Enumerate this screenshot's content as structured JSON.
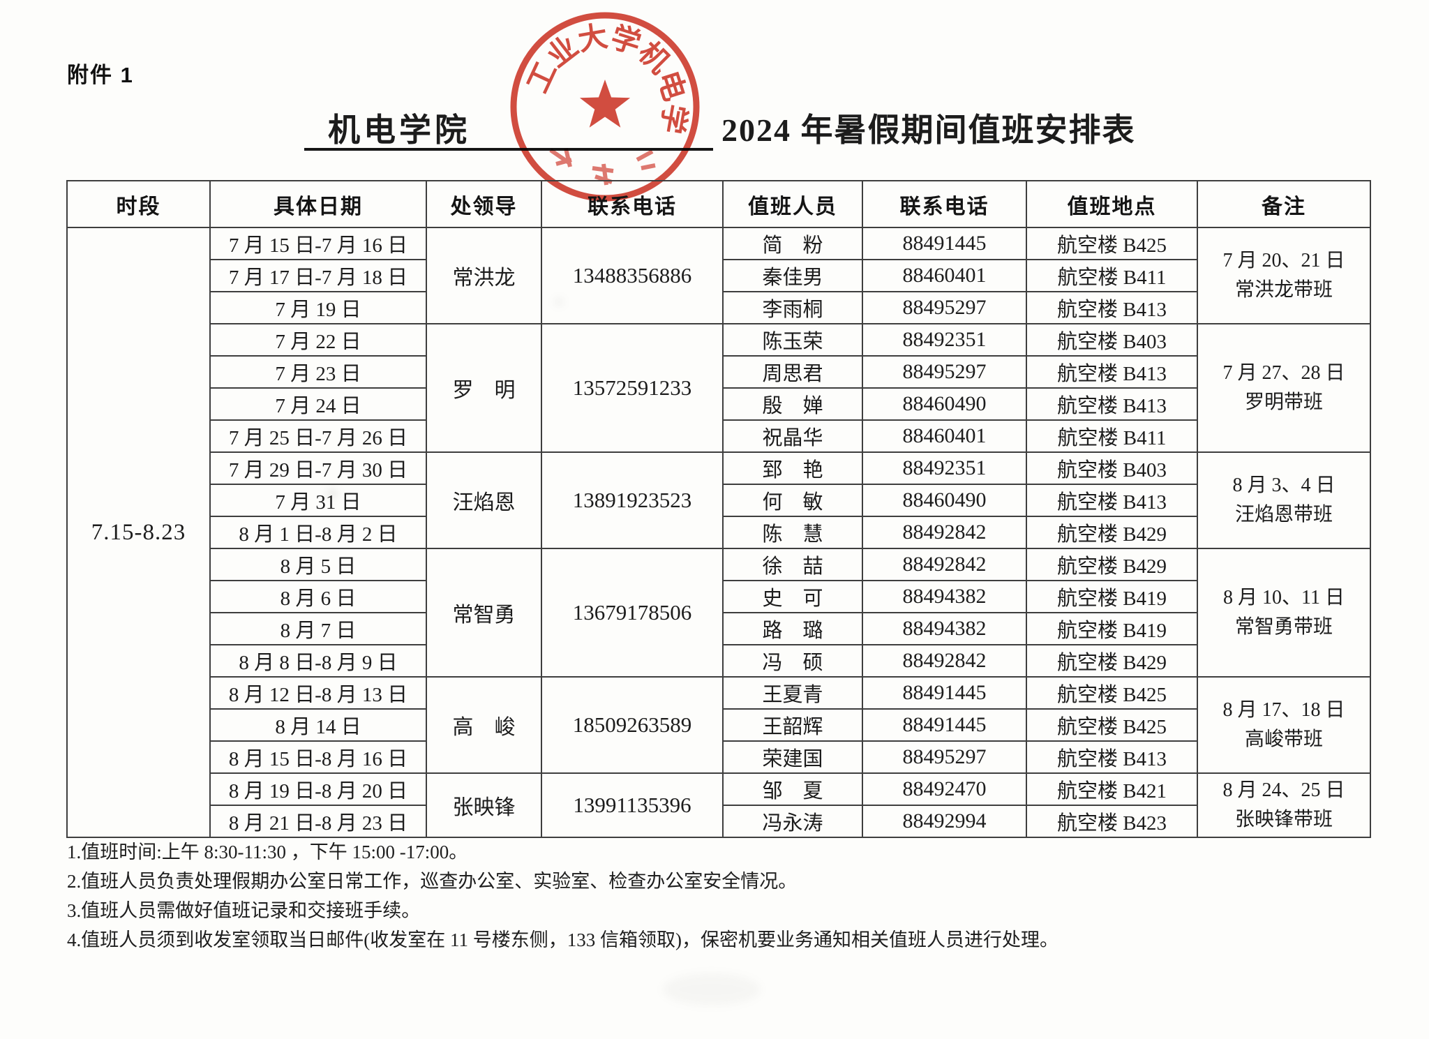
{
  "page": {
    "attachment_label": "附件 1",
    "title_blank": "机电学院",
    "title_rest": "2024 年暑假期间值班安排表"
  },
  "stamp": {
    "ring_text": "工业大学机电学",
    "color": "#cf392c"
  },
  "table": {
    "headers": [
      "时段",
      "具体日期",
      "处领导",
      "联系电话",
      "值班人员",
      "联系电话",
      "值班地点",
      "备注"
    ],
    "period": "7.15-8.23",
    "groups": [
      {
        "leader": "常洪龙",
        "leader_phone": "13488356886",
        "remark_line1": "7 月 20、21 日",
        "remark_line2": "常洪龙带班",
        "rows": [
          {
            "date": "7 月 15 日-7 月 16 日",
            "person": "简　粉",
            "phone": "88491445",
            "location": "航空楼 B425"
          },
          {
            "date": "7 月 17 日-7 月 18 日",
            "person": "秦佳男",
            "phone": "88460401",
            "location": "航空楼 B411"
          },
          {
            "date": "7 月 19 日",
            "person": "李雨桐",
            "phone": "88495297",
            "location": "航空楼 B413"
          }
        ]
      },
      {
        "leader": "罗　明",
        "leader_phone": "13572591233",
        "remark_line1": "7 月 27、28 日",
        "remark_line2": "罗明带班",
        "rows": [
          {
            "date": "7 月 22 日",
            "person": "陈玉荣",
            "phone": "88492351",
            "location": "航空楼 B403"
          },
          {
            "date": "7 月 23 日",
            "person": "周思君",
            "phone": "88495297",
            "location": "航空楼 B413"
          },
          {
            "date": "7 月 24 日",
            "person": "殷　婵",
            "phone": "88460490",
            "location": "航空楼 B413"
          },
          {
            "date": "7 月 25 日-7 月 26 日",
            "person": "祝晶华",
            "phone": "88460401",
            "location": "航空楼 B411"
          }
        ]
      },
      {
        "leader": "汪焰恩",
        "leader_phone": "13891923523",
        "remark_line1": "8 月 3、4 日",
        "remark_line2": "汪焰恩带班",
        "rows": [
          {
            "date": "7 月 29 日-7 月 30 日",
            "person": "郅　艳",
            "phone": "88492351",
            "location": "航空楼 B403"
          },
          {
            "date": "7 月 31 日",
            "person": "何　敏",
            "phone": "88460490",
            "location": "航空楼 B413"
          },
          {
            "date": "8 月 1 日-8 月 2 日",
            "person": "陈　慧",
            "phone": "88492842",
            "location": "航空楼 B429"
          }
        ]
      },
      {
        "leader": "常智勇",
        "leader_phone": "13679178506",
        "remark_line1": "8 月 10、11 日",
        "remark_line2": "常智勇带班",
        "rows": [
          {
            "date": "8 月 5 日",
            "person": "徐　喆",
            "phone": "88492842",
            "location": "航空楼 B429"
          },
          {
            "date": "8 月 6 日",
            "person": "史　可",
            "phone": "88494382",
            "location": "航空楼 B419"
          },
          {
            "date": "8 月 7 日",
            "person": "路　璐",
            "phone": "88494382",
            "location": "航空楼 B419"
          },
          {
            "date": "8 月 8 日-8 月 9 日",
            "person": "冯　硕",
            "phone": "88492842",
            "location": "航空楼 B429"
          }
        ]
      },
      {
        "leader": "高　峻",
        "leader_phone": "18509263589",
        "remark_line1": "8 月 17、18 日",
        "remark_line2": "高峻带班",
        "rows": [
          {
            "date": "8 月 12 日-8 月 13 日",
            "person": "王夏青",
            "phone": "88491445",
            "location": "航空楼 B425"
          },
          {
            "date": "8 月 14 日",
            "person": "王韶辉",
            "phone": "88491445",
            "location": "航空楼 B425"
          },
          {
            "date": "8 月 15 日-8 月 16 日",
            "person": "荣建国",
            "phone": "88495297",
            "location": "航空楼 B413"
          }
        ]
      },
      {
        "leader": "张映锋",
        "leader_phone": "13991135396",
        "remark_line1": "8 月 24、25 日",
        "remark_line2": "张映锋带班",
        "rows": [
          {
            "date": "8 月 19 日-8 月 20 日",
            "person": "邹　夏",
            "phone": "88492470",
            "location": "航空楼 B421"
          },
          {
            "date": "8 月 21 日-8 月 23 日",
            "person": "冯永涛",
            "phone": "88492994",
            "location": "航空楼 B423"
          }
        ]
      }
    ]
  },
  "notes": [
    "1.值班时间:上午 8:30-11:30 ，下午 15:00 -17:00。",
    "2.值班人员负责处理假期办公室日常工作，巡查办公室、实验室、检查办公室安全情况。",
    "3.值班人员需做好值班记录和交接班手续。",
    "4.值班人员须到收发室领取当日邮件(收发室在 11 号楼东侧，133 信箱领取)，保密机要业务通知相关值班人员进行处理。"
  ]
}
